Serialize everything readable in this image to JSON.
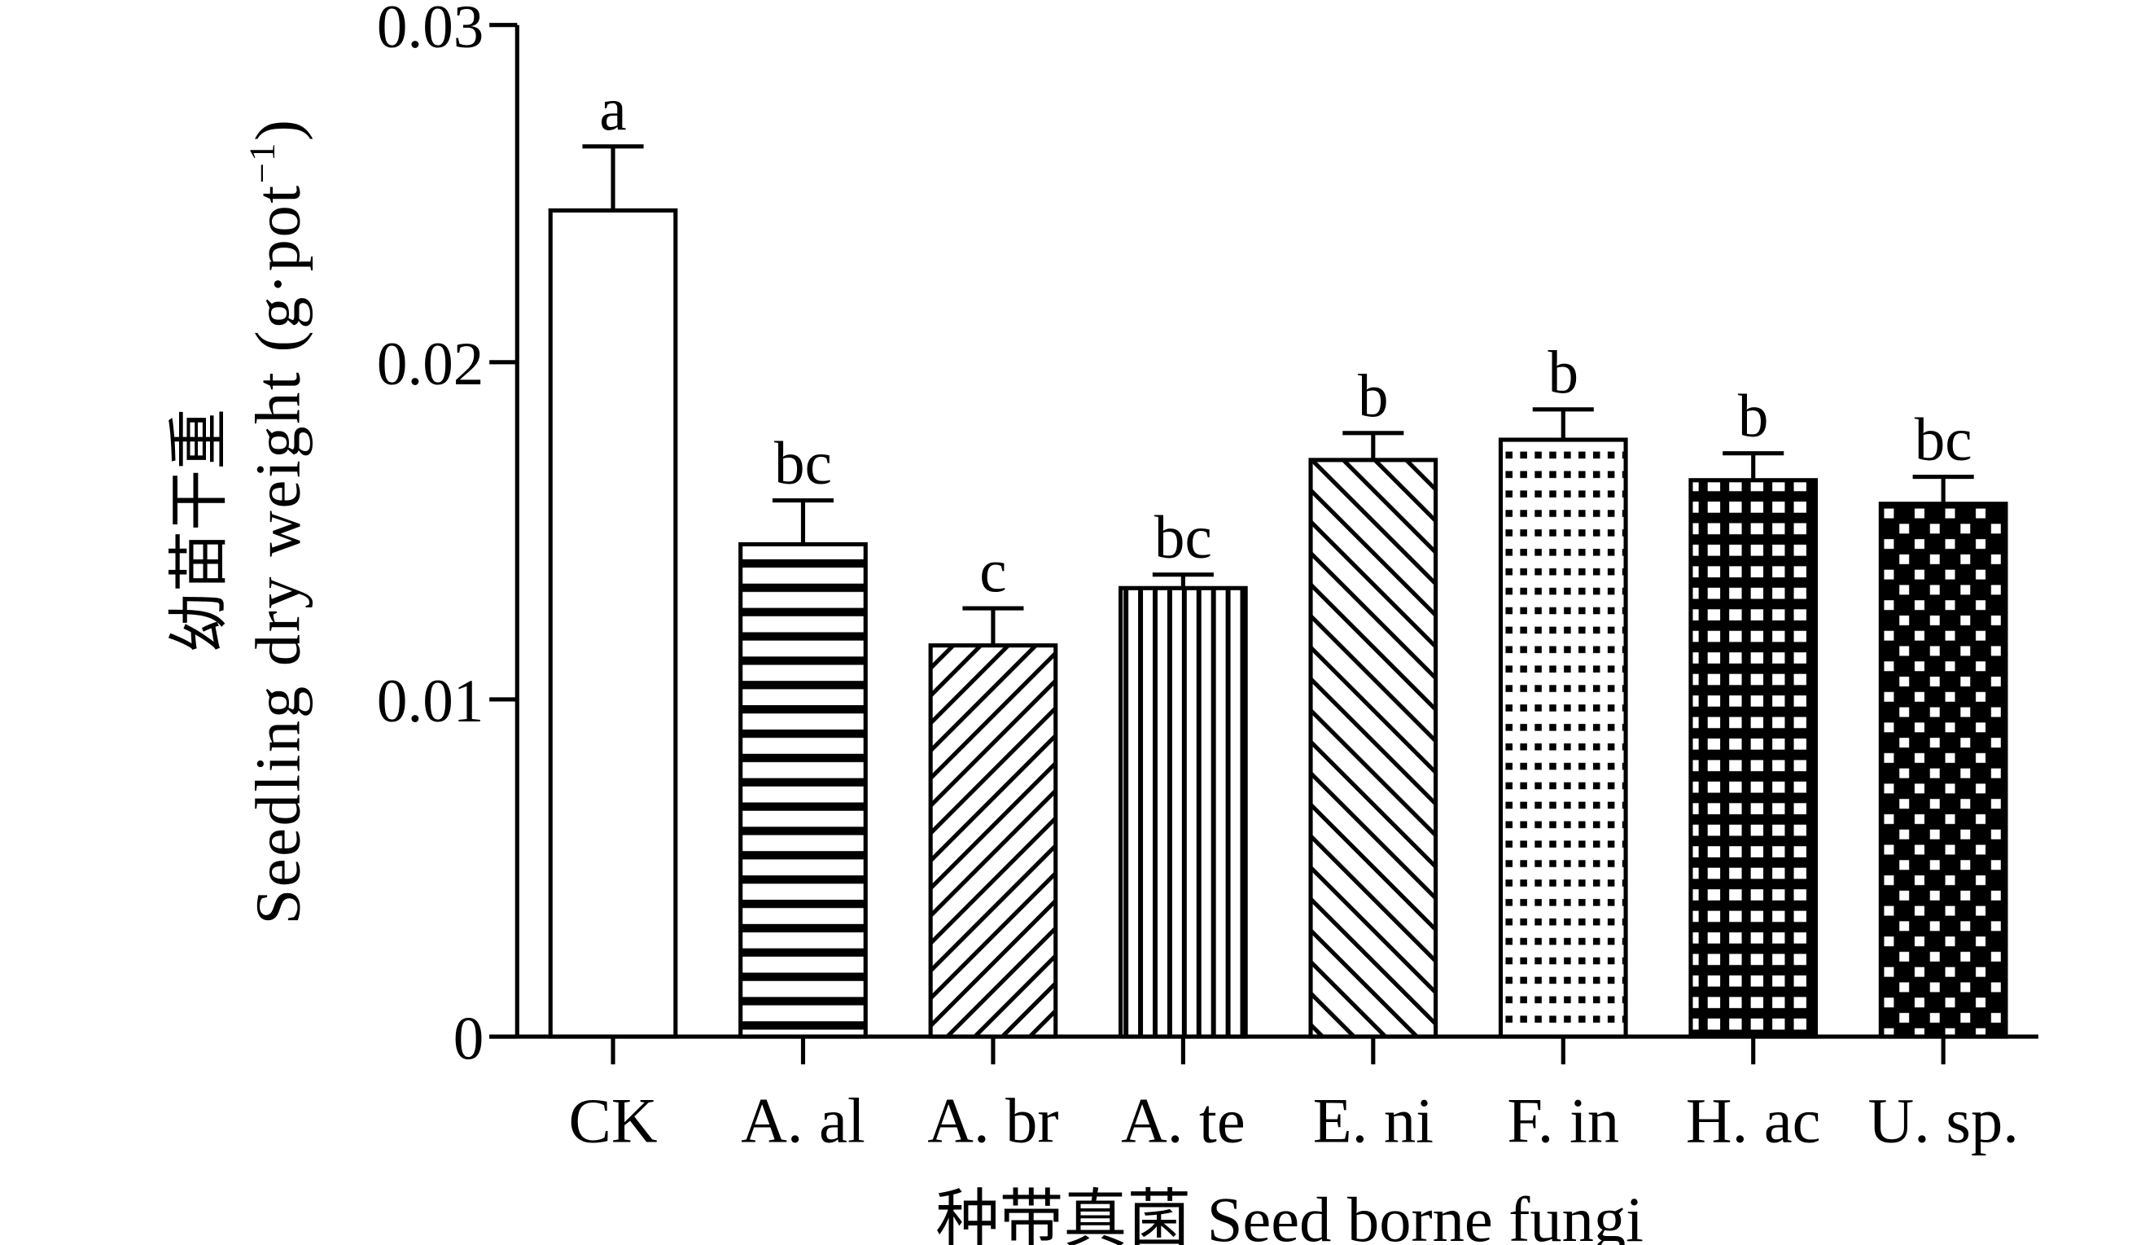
{
  "chart_data": {
    "type": "bar",
    "title": "",
    "xlabel": "种带真菌 Seed borne fungi",
    "ylabel_cn": "幼苗干重",
    "ylabel": "Seedling dry weight (g·pot",
    "ylabel_sup": "−1",
    "ylabel_close": ")",
    "ylim": [
      0,
      0.03
    ],
    "yticks": [
      0,
      0.01,
      0.02,
      0.03
    ],
    "ytick_labels": [
      "0",
      "0.01",
      "0.02",
      "0.03"
    ],
    "grid": false,
    "categories": [
      "CK",
      "A. al",
      "A. br",
      "A. te",
      "E. ni",
      "F. in",
      "H. ac",
      "U. sp."
    ],
    "values": [
      0.0245,
      0.0146,
      0.0116,
      0.0133,
      0.0171,
      0.0177,
      0.0165,
      0.0158
    ],
    "errors": [
      0.0019,
      0.0013,
      0.0011,
      0.0004,
      0.0008,
      0.0009,
      0.0008,
      0.0008
    ],
    "significance": [
      "a",
      "bc",
      "c",
      "bc",
      "b",
      "b",
      "b",
      "bc"
    ],
    "patterns": [
      "none",
      "horizontal",
      "diagonal-up",
      "vertical",
      "diagonal-down",
      "dots",
      "grid",
      "checker"
    ],
    "colors": {
      "stroke": "#000000",
      "fill": "#ffffff"
    }
  }
}
